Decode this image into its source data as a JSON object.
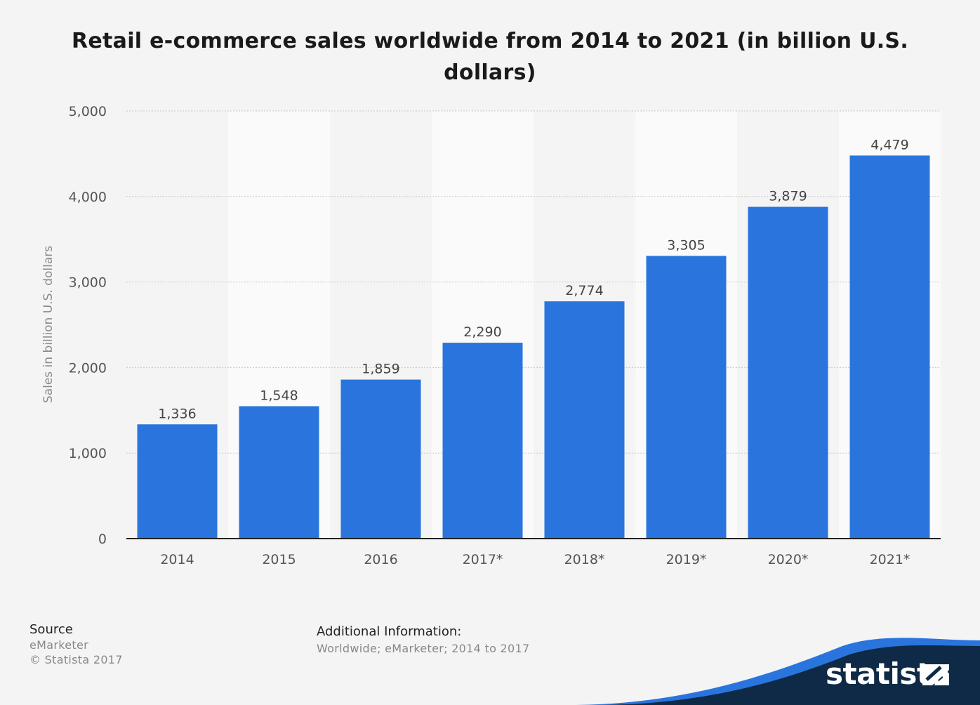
{
  "chart_data": {
    "type": "bar",
    "title": "Retail e-commerce sales worldwide from 2014 to 2021 (in billion U.S. dollars)",
    "ylabel": "Sales in billion U.S. dollars",
    "xlabel": "",
    "categories": [
      "2014",
      "2015",
      "2016",
      "2017*",
      "2018*",
      "2019*",
      "2020*",
      "2021*"
    ],
    "values": [
      1336,
      1548,
      1859,
      2290,
      2774,
      3305,
      3879,
      4479
    ],
    "value_labels": [
      "1,336",
      "1,548",
      "1,859",
      "2,290",
      "2,774",
      "3,305",
      "3,879",
      "4,479"
    ],
    "ylim": [
      0,
      5000
    ],
    "yticks": [
      0,
      1000,
      2000,
      3000,
      4000,
      5000
    ],
    "ytick_labels": [
      "0",
      "1,000",
      "2,000",
      "3,000",
      "4,000",
      "5,000"
    ],
    "grid": true,
    "legend": "none",
    "bar_color": "#2a75dd"
  },
  "source": {
    "title": "Source",
    "line1": "eMarketer",
    "line2": "© Statista 2017"
  },
  "additional_info": {
    "title": "Additional Information:",
    "text": "Worldwide; eMarketer; 2014 to 2017"
  },
  "brand": {
    "name": "statista",
    "dark_color": "#0e2a47",
    "accent_color": "#2a75dd"
  }
}
